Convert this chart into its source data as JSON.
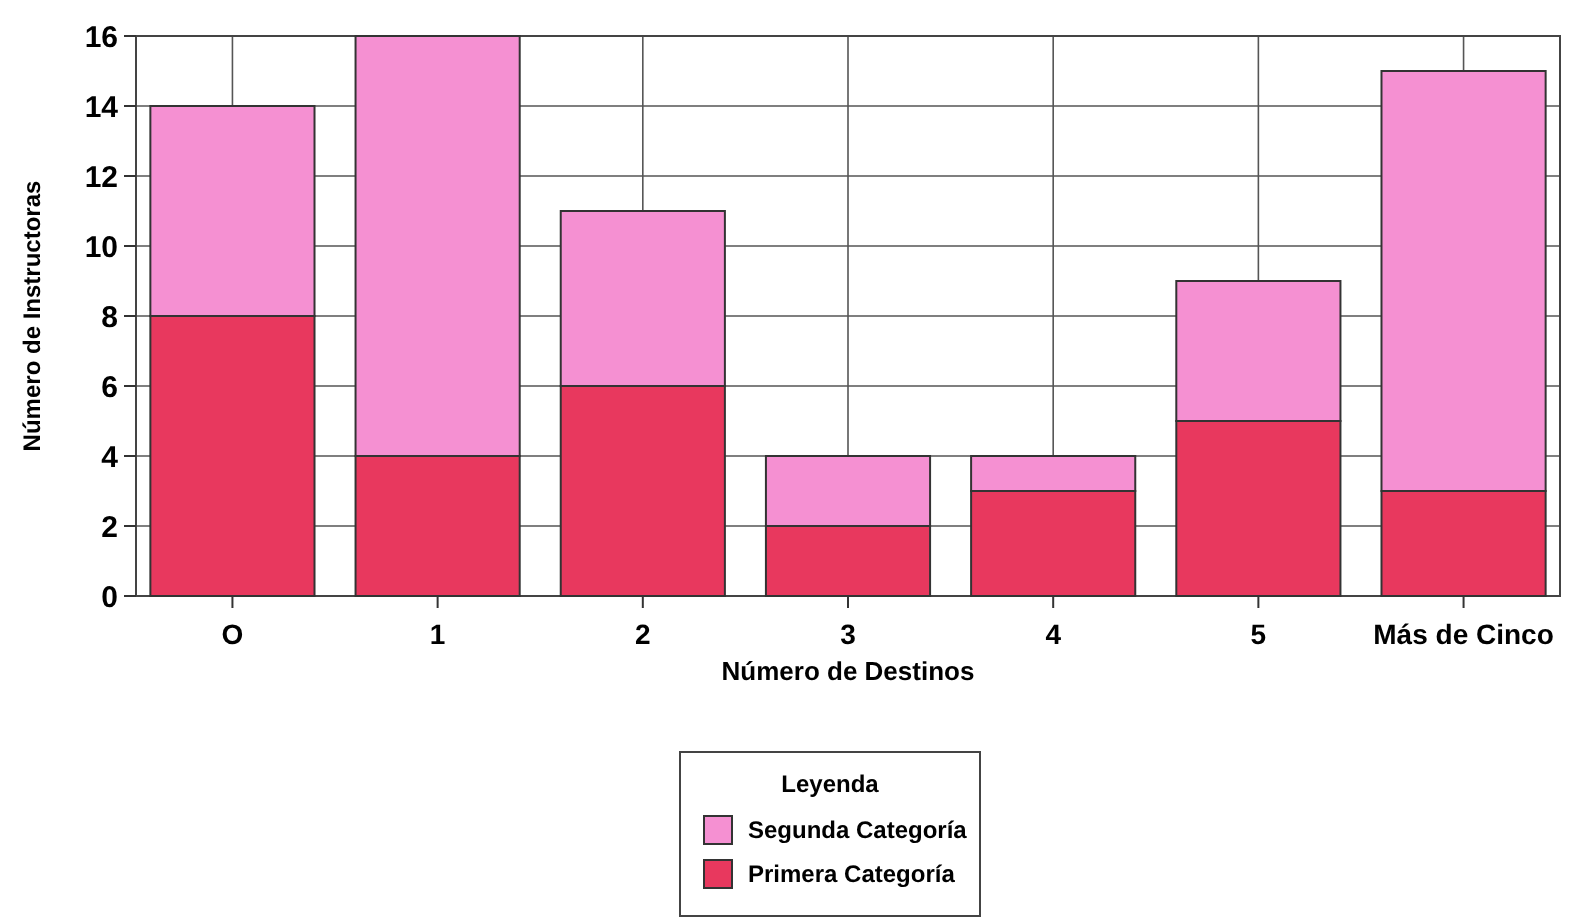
{
  "chart_data": {
    "type": "bar",
    "stacked": true,
    "xlabel": "Número de Destinos",
    "ylabel": "Número de Instructoras",
    "legend_title": "Leyenda",
    "categories": [
      "O",
      "1",
      "2",
      "3",
      "4",
      "5",
      "Más de Cinco"
    ],
    "series": [
      {
        "name": "Primera Categoría",
        "color": "#e8385e",
        "values": [
          8,
          4,
          6,
          2,
          3,
          5,
          3
        ]
      },
      {
        "name": "Segunda Categoría",
        "color": "#f590d2",
        "values": [
          6,
          12,
          5,
          2,
          1,
          4,
          12
        ]
      }
    ],
    "ylim": [
      0,
      16
    ],
    "yticks": [
      0,
      2,
      4,
      6,
      8,
      10,
      12,
      14,
      16
    ],
    "grid": true,
    "legend": "bottom"
  }
}
